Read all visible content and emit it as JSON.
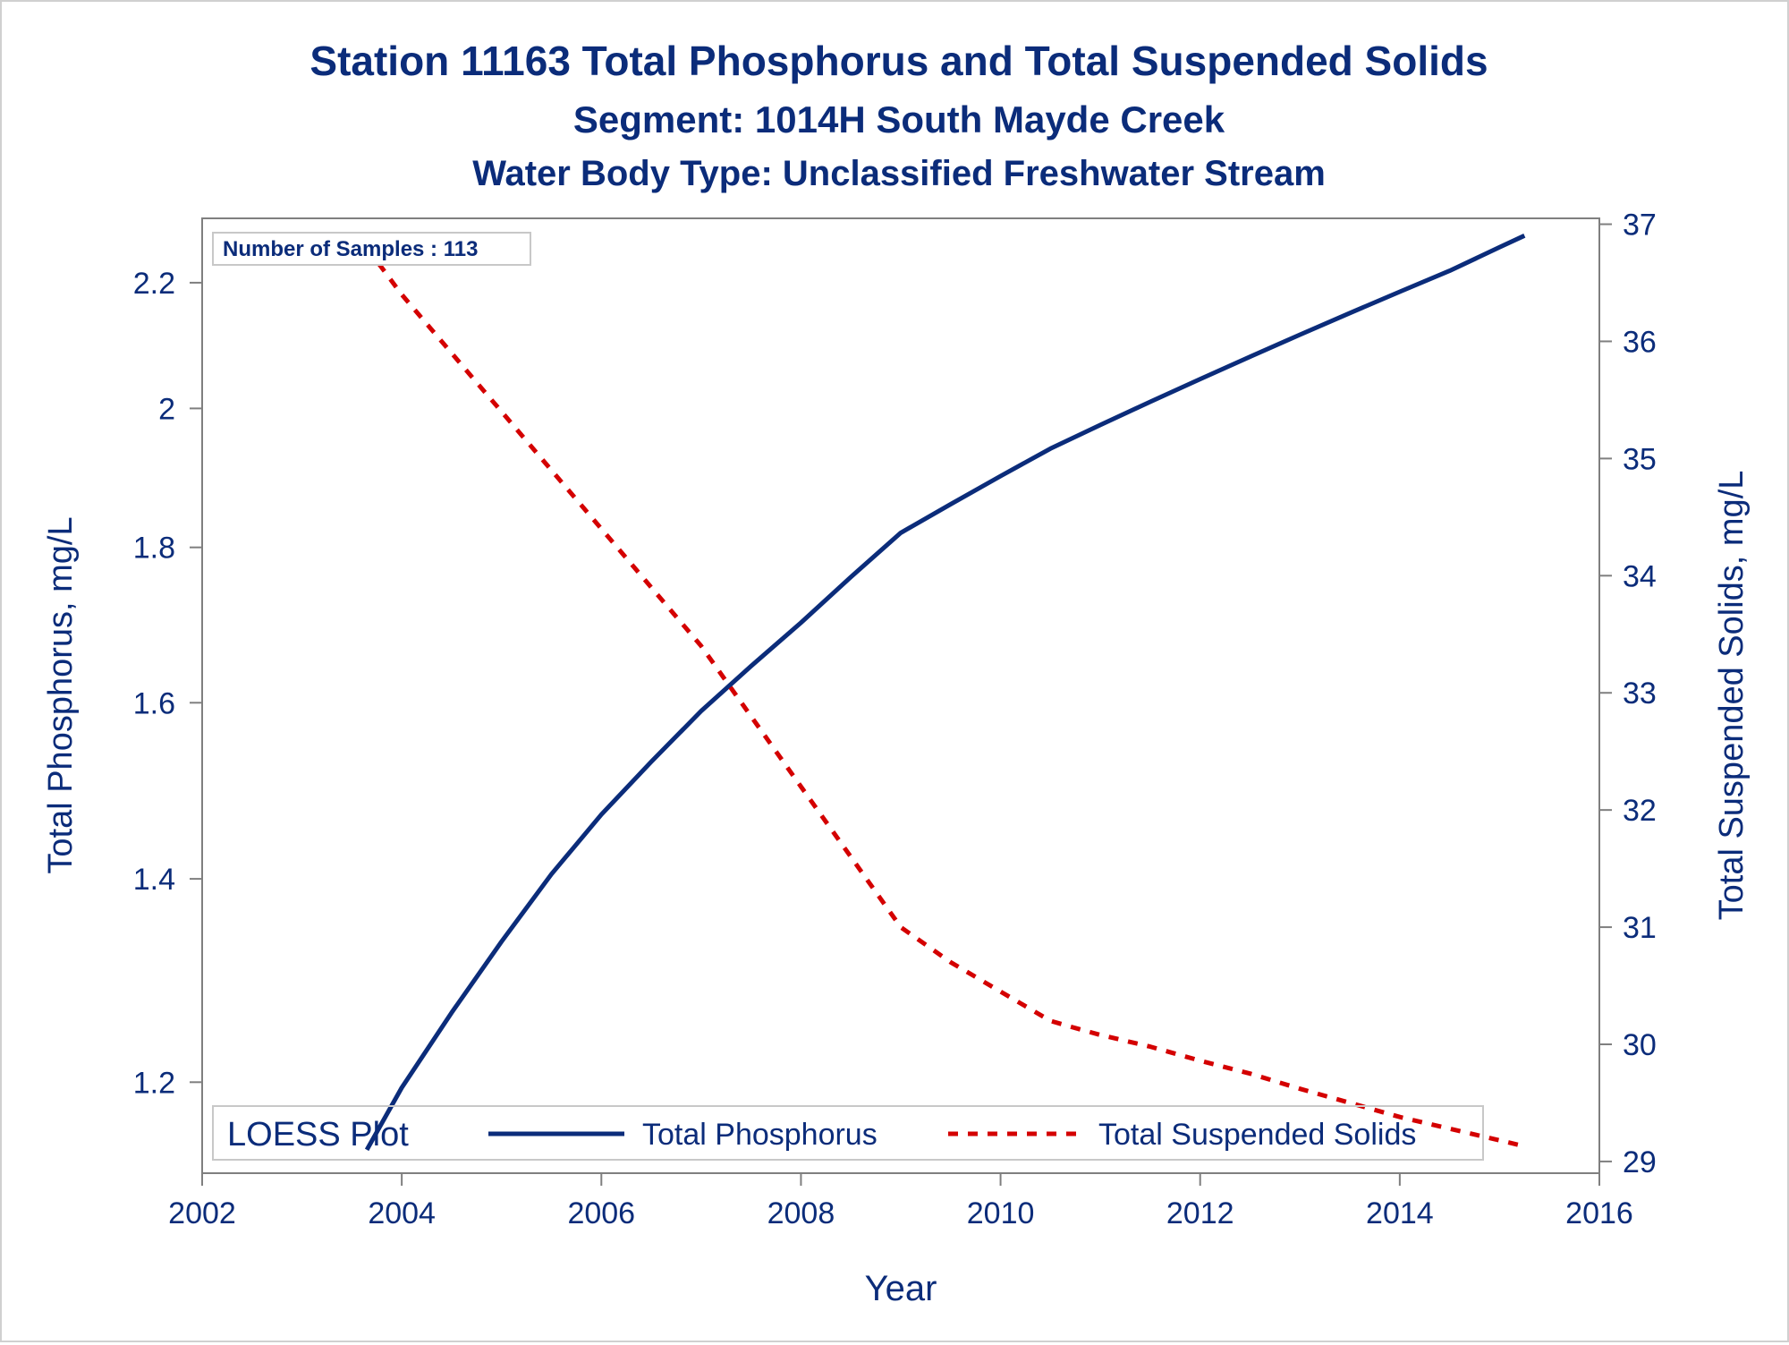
{
  "title": "Station 11163  Total Phosphorus and Total Suspended Solids",
  "subtitle": "Segment: 1014H  South Mayde Creek",
  "subtitle2": "Water Body Type: Unclassified Freshwater Stream",
  "sample_count_label": "Number of Samples : 113",
  "colors": {
    "text": "#0b2c7a",
    "phosphorus": "#0b2c7a",
    "tss": "#d40000",
    "axis": "#7f7f7f",
    "legend_border": "#c8c8c8"
  },
  "legend": {
    "title": "LOESS Plot",
    "position": "bottom-left inside plot",
    "items": [
      {
        "label": "Total Phosphorus",
        "style": "solid"
      },
      {
        "label": "Total Suspended Solids",
        "style": "dashed"
      }
    ]
  },
  "chart_data": {
    "type": "line",
    "xlabel": "Year",
    "ylabel": "Total Phosphorus, mg/L",
    "y2label": "Total Suspended Solids, mg/L",
    "xlim": [
      2002,
      2016
    ],
    "ylim": [
      1.12,
      2.31
    ],
    "y2lim": [
      28.9,
      37.05
    ],
    "x_ticks": [
      2002,
      2004,
      2006,
      2008,
      2010,
      2012,
      2014,
      2016
    ],
    "y_ticks": [
      1.2,
      1.4,
      1.6,
      1.8,
      2.0,
      2.2
    ],
    "y_tick_labels": [
      "1.2",
      "1.4",
      "1.6",
      "1.8",
      "2",
      "2.2"
    ],
    "y2_ticks": [
      29,
      30,
      31,
      32,
      33,
      34,
      35,
      36,
      37
    ],
    "y_scale": "log",
    "y2_scale": "linear",
    "grid": false,
    "series": [
      {
        "name": "Total Phosphorus",
        "axis": "left",
        "x": [
          2003.65,
          2004.0,
          2004.5,
          2005.0,
          2005.5,
          2006.0,
          2006.5,
          2007.0,
          2007.5,
          2008.0,
          2008.5,
          2009.0,
          2009.5,
          2010.0,
          2010.5,
          2011.0,
          2011.5,
          2012.0,
          2012.5,
          2013.0,
          2013.5,
          2014.0,
          2014.5,
          2015.0,
          2015.25
        ],
        "values": [
          1.14,
          1.195,
          1.265,
          1.335,
          1.405,
          1.47,
          1.53,
          1.59,
          1.645,
          1.7,
          1.76,
          1.82,
          1.86,
          1.9,
          1.94,
          1.975,
          2.01,
          2.045,
          2.08,
          2.115,
          2.15,
          2.185,
          2.22,
          2.26,
          2.28
        ]
      },
      {
        "name": "Total Suspended Solids",
        "axis": "right",
        "x": [
          2003.65,
          2004.0,
          2004.5,
          2005.0,
          2005.5,
          2006.0,
          2006.5,
          2007.0,
          2007.5,
          2008.0,
          2008.5,
          2009.0,
          2009.5,
          2010.0,
          2010.5,
          2010.7,
          2011.0,
          2011.5,
          2012.0,
          2012.5,
          2013.0,
          2013.5,
          2014.0,
          2014.5,
          2015.0,
          2015.25
        ],
        "values": [
          36.8,
          36.4,
          35.9,
          35.4,
          34.9,
          34.4,
          33.9,
          33.4,
          32.8,
          32.2,
          31.6,
          31.0,
          30.7,
          30.45,
          30.2,
          30.15,
          30.08,
          29.98,
          29.86,
          29.75,
          29.62,
          29.5,
          29.38,
          29.28,
          29.18,
          29.13
        ]
      }
    ]
  }
}
